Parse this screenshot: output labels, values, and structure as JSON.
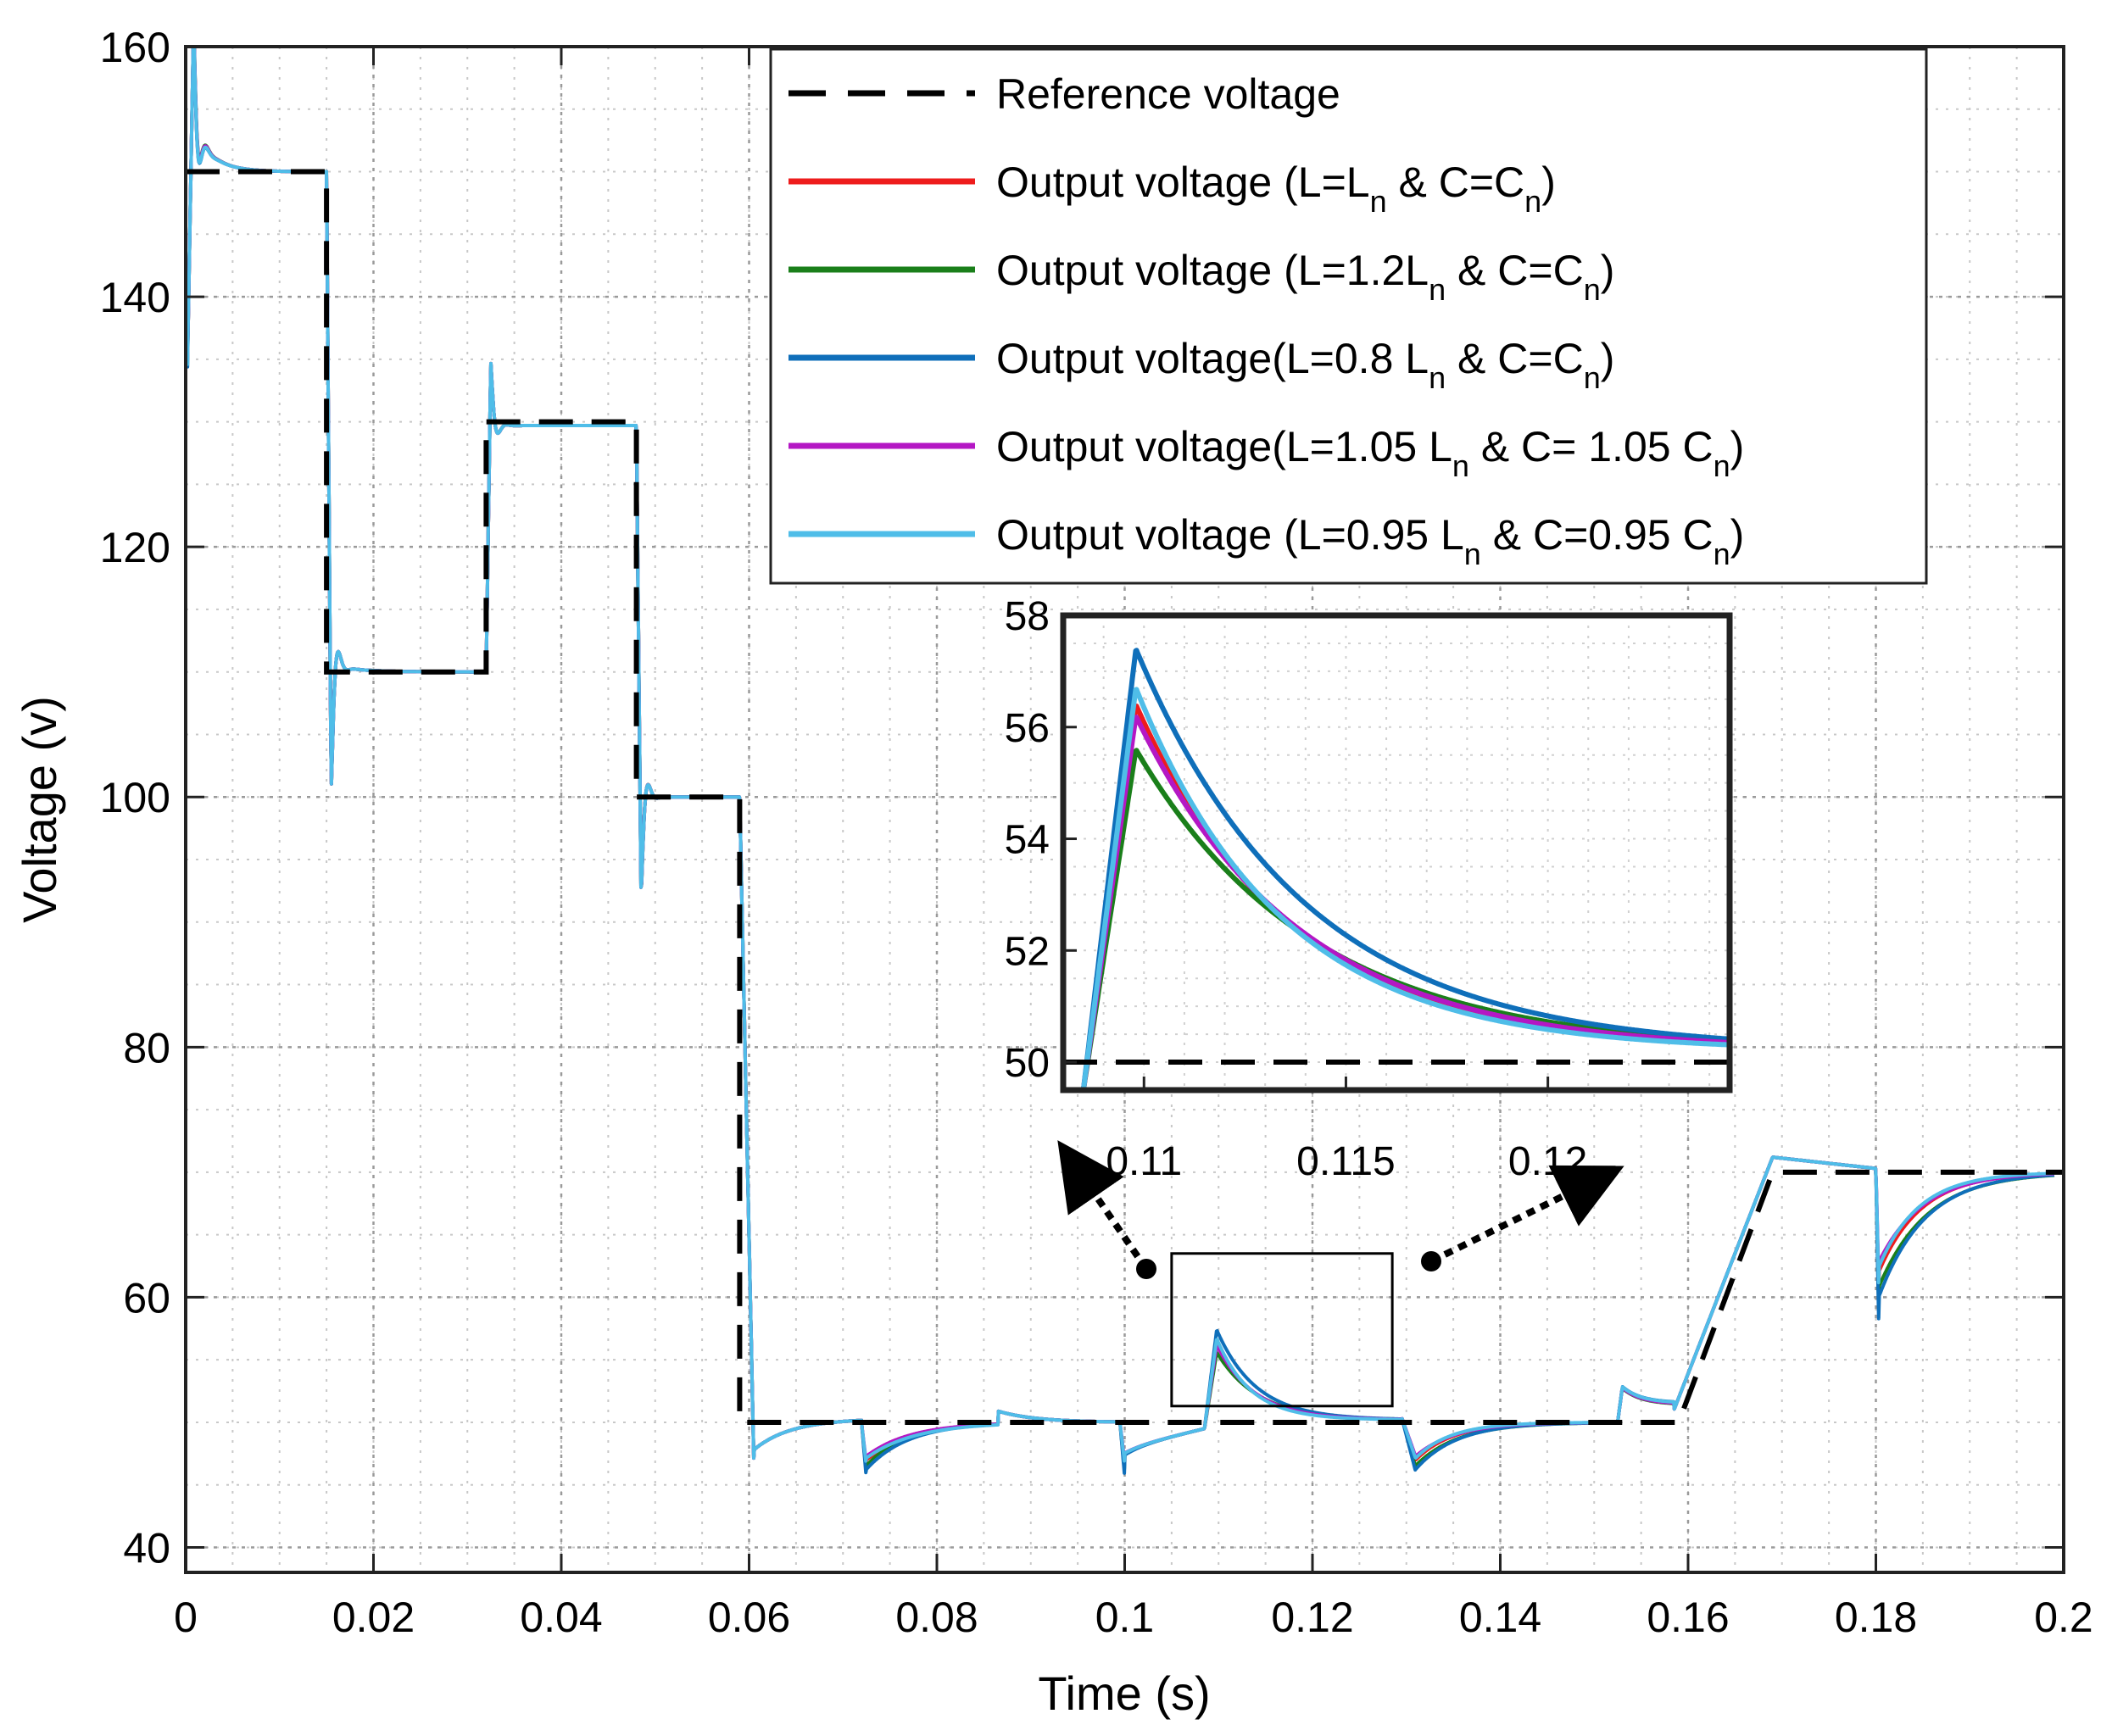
{
  "chart_data": {
    "type": "line",
    "xlabel": "Time (s)",
    "ylabel": "Voltage (v)",
    "xlim": [
      0,
      0.2
    ],
    "ylim": [
      38,
      160
    ],
    "xticks": [
      0,
      0.02,
      0.04,
      0.06,
      0.08,
      0.1,
      0.12,
      0.14,
      0.16,
      0.18,
      0.2
    ],
    "yticks": [
      40,
      60,
      80,
      100,
      120,
      140,
      160
    ],
    "xtick_labels": [
      "0",
      "0.02",
      "0.04",
      "0.06",
      "0.08",
      "0.1",
      "0.12",
      "0.14",
      "0.16",
      "0.18",
      "0.2"
    ],
    "ytick_labels": [
      "40",
      "60",
      "80",
      "100",
      "120",
      "140",
      "160"
    ],
    "grid": "on (dotted, with minor grid)",
    "legend_position": "top-right",
    "legend": [
      {
        "text": "Reference voltage",
        "sub": "",
        "text_mid": "",
        "sub2": "",
        "text_end": "",
        "color": "#000000",
        "style": "dashed"
      },
      {
        "text": "Output voltage (L=L",
        "sub": "n",
        "text_mid": " & C=C",
        "sub2": "n",
        "text_end": ")",
        "color": "#ee1c1c",
        "style": "solid"
      },
      {
        "text": "Output voltage (L=1.2L",
        "sub": "n",
        "text_mid": " & C=C",
        "sub2": "n",
        "text_end": ")",
        "color": "#1a7f1a",
        "style": "solid"
      },
      {
        "text": "Output voltage(L=0.8 L",
        "sub": "n",
        "text_mid": " & C=C",
        "sub2": "n",
        "text_end": ")",
        "color": "#0f6fba",
        "style": "solid"
      },
      {
        "text": "Output voltage(L=1.05 L",
        "sub": "n",
        "text_mid": " & C= 1.05 C",
        "sub2": "n",
        "text_end": ")",
        "color": "#b417c4",
        "style": "solid"
      },
      {
        "text": "Output voltage (L=0.95 L",
        "sub": "n",
        "text_mid": " & C=0.95 C",
        "sub2": "n",
        "text_end": ")",
        "color": "#4fbde8",
        "style": "solid"
      }
    ],
    "reference": {
      "name": "Reference voltage",
      "x": [
        0,
        0.015,
        0.015,
        0.032,
        0.032,
        0.048,
        0.048,
        0.059,
        0.059,
        0.159,
        0.159,
        0.169,
        0.169,
        0.2
      ],
      "y": [
        150,
        150,
        110,
        110,
        130,
        130,
        100,
        100,
        50,
        50,
        50,
        70,
        70,
        70
      ]
    },
    "series": [
      {
        "name": "Output voltage (L=Ln & C=Cn)",
        "color": "#ee1c1c",
        "peak_offset": 0,
        "settle_scale": 1.0,
        "peak_110": 56.4,
        "dip_scale": 1.0
      },
      {
        "name": "Output voltage (L=1.2Ln & C=Cn)",
        "color": "#1a7f1a",
        "peak_offset": 0.4,
        "settle_scale": 1.15,
        "peak_110": 55.6,
        "dip_scale": 1.15
      },
      {
        "name": "Output voltage(L=0.8 Ln & C=Cn)",
        "color": "#0f6fba",
        "peak_offset": -0.3,
        "settle_scale": 1.1,
        "peak_110": 57.4,
        "dip_scale": 1.25
      },
      {
        "name": "Output voltage(L=1.05 Ln & C= 1.05 Cn)",
        "color": "#b417c4",
        "peak_offset": 0.2,
        "settle_scale": 1.05,
        "peak_110": 56.2,
        "dip_scale": 0.9
      },
      {
        "name": "Output voltage (L=0.95 Ln & C=0.95 Cn)",
        "color": "#4fbde8",
        "peak_offset": -0.2,
        "settle_scale": 0.95,
        "peak_110": 56.7,
        "dip_scale": 0.95
      }
    ],
    "inset": {
      "xlim": [
        0.108,
        0.1245
      ],
      "ylim": [
        49.5,
        58
      ],
      "xticks": [
        0.11,
        0.115,
        0.12
      ],
      "yticks": [
        50,
        52,
        54,
        56,
        58
      ],
      "xtick_labels": [
        "0.11",
        "0.115",
        "0.12"
      ],
      "ytick_labels": [
        "50",
        "52",
        "54",
        "56",
        "58"
      ],
      "zoom_box": {
        "x": [
          0.105,
          0.1285
        ],
        "y": [
          51.3,
          63.5
        ]
      }
    }
  }
}
